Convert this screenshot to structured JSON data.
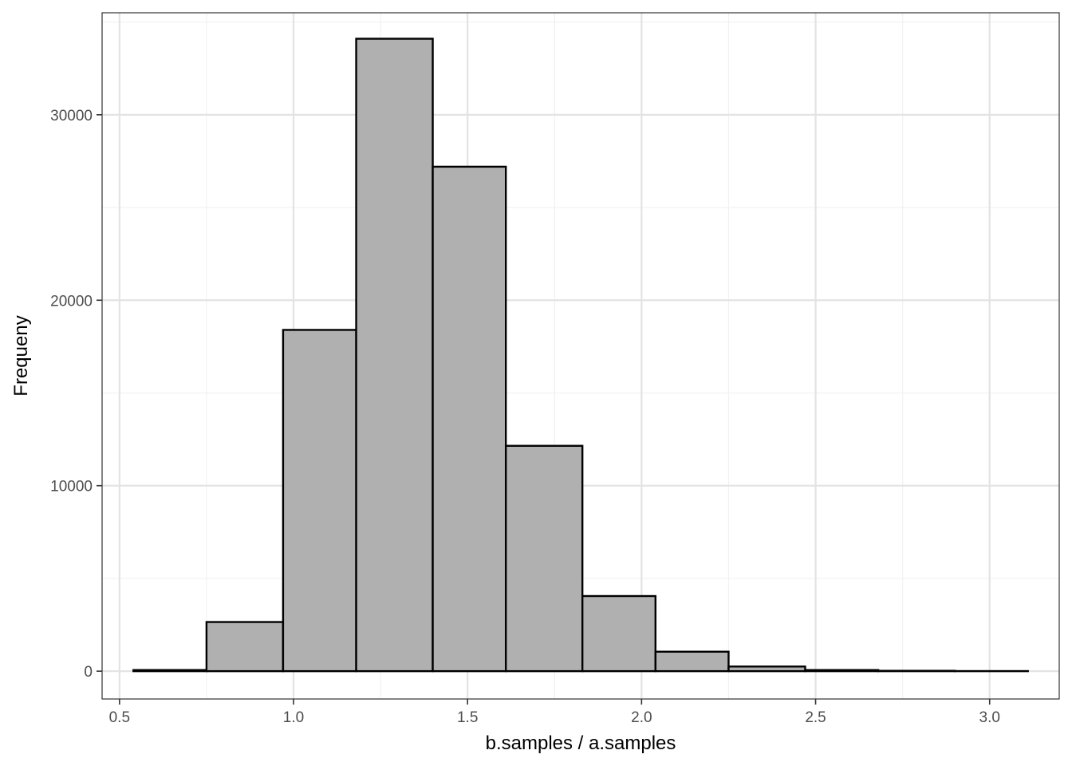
{
  "chart_data": {
    "type": "bar",
    "subtype": "histogram",
    "xlabel": "b.samples / a.samples",
    "ylabel": "Frequeny",
    "xlim": [
      0.45,
      3.2
    ],
    "ylim": [
      -1500,
      35500
    ],
    "x_ticks": [
      0.5,
      1.0,
      1.5,
      2.0,
      2.5,
      3.0
    ],
    "x_tick_labels": [
      "0.5",
      "1.0",
      "1.5",
      "2.0",
      "2.5",
      "3.0"
    ],
    "y_ticks": [
      0,
      10000,
      20000,
      30000
    ],
    "y_tick_labels": [
      "0",
      "10000",
      "20000",
      "30000"
    ],
    "y_minor_ticks": [
      5000,
      15000,
      25000,
      35000
    ],
    "x_minor_ticks": [
      0.75,
      1.25,
      1.75,
      2.25,
      2.75
    ],
    "grid": true,
    "bins": [
      {
        "x0": 0.54,
        "x1": 0.75,
        "count": 60
      },
      {
        "x0": 0.75,
        "x1": 0.97,
        "count": 2650
      },
      {
        "x0": 0.97,
        "x1": 1.18,
        "count": 18400
      },
      {
        "x0": 1.18,
        "x1": 1.4,
        "count": 34100
      },
      {
        "x0": 1.4,
        "x1": 1.61,
        "count": 27200
      },
      {
        "x0": 1.61,
        "x1": 1.83,
        "count": 12150
      },
      {
        "x0": 1.83,
        "x1": 2.04,
        "count": 4050
      },
      {
        "x0": 2.04,
        "x1": 2.25,
        "count": 1050
      },
      {
        "x0": 2.25,
        "x1": 2.47,
        "count": 250
      },
      {
        "x0": 2.47,
        "x1": 2.68,
        "count": 60
      },
      {
        "x0": 2.68,
        "x1": 2.9,
        "count": 20
      },
      {
        "x0": 2.9,
        "x1": 3.11,
        "count": 5
      }
    ],
    "colors": {
      "bar_fill": "#b0b0b0",
      "bar_outline": "#000000",
      "grid_major": "#e3e3e3",
      "grid_minor": "#f1f1f1",
      "panel_border": "#333333"
    }
  }
}
